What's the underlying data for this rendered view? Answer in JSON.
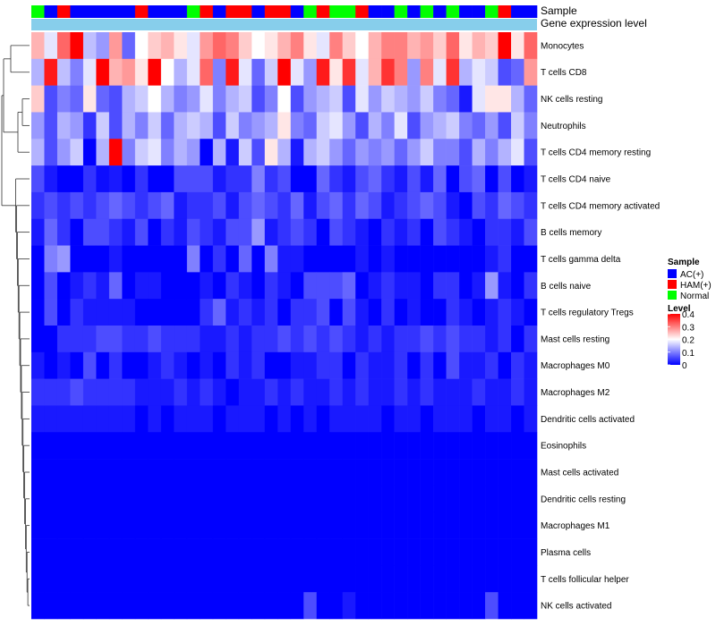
{
  "chart_data": {
    "type": "heatmap",
    "title": "",
    "annotation_tracks": [
      "Sample",
      "Gene expression level"
    ],
    "sample_groups": [
      "Normal",
      "AC(+)",
      "HAM(+)",
      "AC(+)",
      "AC(+)",
      "AC(+)",
      "AC(+)",
      "AC(+)",
      "HAM(+)",
      "AC(+)",
      "AC(+)",
      "AC(+)",
      "Normal",
      "HAM(+)",
      "AC(+)",
      "HAM(+)",
      "HAM(+)",
      "AC(+)",
      "HAM(+)",
      "HAM(+)",
      "AC(+)",
      "Normal",
      "HAM(+)",
      "Normal",
      "Normal",
      "HAM(+)",
      "AC(+)",
      "AC(+)",
      "Normal",
      "AC(+)",
      "Normal",
      "AC(+)",
      "Normal",
      "AC(+)",
      "AC(+)",
      "Normal",
      "HAM(+)",
      "AC(+)",
      "AC(+)"
    ],
    "rows": [
      "Monocytes",
      "T cells CD8",
      "NK cells resting",
      "Neutrophils",
      "T cells CD4 memory resting",
      "T cells CD4 naive",
      "T cells CD4 memory activated",
      "B cells memory",
      "T cells gamma delta",
      "B cells naive",
      "T cells regulatory  Tregs",
      "Mast cells resting",
      "Macrophages M0",
      "Macrophages M2",
      "Dendritic cells activated",
      "Eosinophils",
      "Mast cells activated",
      "Dendritic cells resting",
      "Macrophages M1",
      "Plasma cells",
      "T cells follicular helper",
      "NK cells activated"
    ],
    "values": [
      [
        0.26,
        0.18,
        0.32,
        0.4,
        0.15,
        0.12,
        0.28,
        0.08,
        0.2,
        0.24,
        0.26,
        0.22,
        0.18,
        0.28,
        0.32,
        0.3,
        0.24,
        0.2,
        0.22,
        0.26,
        0.3,
        0.22,
        0.18,
        0.3,
        0.24,
        0.2,
        0.26,
        0.3,
        0.3,
        0.26,
        0.28,
        0.24,
        0.32,
        0.22,
        0.26,
        0.24,
        0.4,
        0.22,
        0.32
      ],
      [
        0.14,
        0.38,
        0.15,
        0.1,
        0.18,
        0.4,
        0.26,
        0.28,
        0.22,
        0.4,
        0.2,
        0.14,
        0.18,
        0.32,
        0.1,
        0.38,
        0.18,
        0.08,
        0.16,
        0.4,
        0.18,
        0.12,
        0.38,
        0.22,
        0.36,
        0.18,
        0.26,
        0.36,
        0.3,
        0.12,
        0.3,
        0.18,
        0.36,
        0.14,
        0.18,
        0.16,
        0.06,
        0.08,
        0.28
      ],
      [
        0.24,
        0.06,
        0.1,
        0.08,
        0.22,
        0.08,
        0.06,
        0.14,
        0.16,
        0.2,
        0.14,
        0.1,
        0.12,
        0.18,
        0.1,
        0.14,
        0.16,
        0.06,
        0.1,
        0.2,
        0.06,
        0.12,
        0.14,
        0.16,
        0.06,
        0.18,
        0.12,
        0.16,
        0.14,
        0.12,
        0.16,
        0.1,
        0.08,
        0.02,
        0.18,
        0.22,
        0.22,
        0.14,
        0.08
      ],
      [
        0.12,
        0.06,
        0.14,
        0.12,
        0.04,
        0.16,
        0.06,
        0.14,
        0.1,
        0.16,
        0.08,
        0.14,
        0.16,
        0.14,
        0.06,
        0.16,
        0.1,
        0.12,
        0.14,
        0.22,
        0.1,
        0.08,
        0.16,
        0.18,
        0.12,
        0.06,
        0.14,
        0.1,
        0.18,
        0.06,
        0.12,
        0.14,
        0.16,
        0.1,
        0.08,
        0.12,
        0.06,
        0.16,
        0.1
      ],
      [
        0.14,
        0.06,
        0.12,
        0.16,
        0.0,
        0.14,
        0.4,
        0.1,
        0.16,
        0.18,
        0.1,
        0.14,
        0.12,
        0.0,
        0.14,
        0.02,
        0.16,
        0.06,
        0.22,
        0.14,
        0.02,
        0.14,
        0.16,
        0.12,
        0.08,
        0.12,
        0.1,
        0.12,
        0.08,
        0.12,
        0.16,
        0.1,
        0.1,
        0.06,
        0.14,
        0.1,
        0.14,
        0.18,
        0.06
      ],
      [
        0.06,
        0.02,
        0.0,
        0.0,
        0.04,
        0.01,
        0.02,
        0.0,
        0.04,
        0.0,
        0.0,
        0.06,
        0.06,
        0.06,
        0.02,
        0.04,
        0.04,
        0.1,
        0.04,
        0.06,
        0.0,
        0.0,
        0.08,
        0.04,
        0.02,
        0.06,
        0.08,
        0.04,
        0.02,
        0.06,
        0.02,
        0.08,
        0.0,
        0.06,
        0.08,
        0.0,
        0.06,
        0.0,
        0.02
      ],
      [
        0.04,
        0.06,
        0.04,
        0.06,
        0.04,
        0.06,
        0.08,
        0.06,
        0.04,
        0.06,
        0.08,
        0.02,
        0.04,
        0.04,
        0.06,
        0.02,
        0.06,
        0.08,
        0.06,
        0.04,
        0.08,
        0.02,
        0.06,
        0.08,
        0.04,
        0.08,
        0.06,
        0.02,
        0.04,
        0.06,
        0.08,
        0.06,
        0.02,
        0.0,
        0.06,
        0.04,
        0.08,
        0.06,
        0.04
      ],
      [
        0.02,
        0.08,
        0.04,
        0.0,
        0.06,
        0.06,
        0.04,
        0.02,
        0.06,
        0.0,
        0.04,
        0.02,
        0.06,
        0.04,
        0.02,
        0.06,
        0.06,
        0.12,
        0.02,
        0.04,
        0.06,
        0.04,
        0.0,
        0.06,
        0.04,
        0.02,
        0.0,
        0.04,
        0.02,
        0.04,
        0.0,
        0.06,
        0.04,
        0.02,
        0.0,
        0.04,
        0.04,
        0.02,
        0.06
      ],
      [
        0.0,
        0.1,
        0.12,
        0.0,
        0.0,
        0.0,
        0.02,
        0.0,
        0.0,
        0.0,
        0.0,
        0.0,
        0.1,
        0.0,
        0.04,
        0.0,
        0.08,
        0.0,
        0.1,
        0.02,
        0.02,
        0.0,
        0.0,
        0.0,
        0.0,
        0.02,
        0.0,
        0.02,
        0.0,
        0.0,
        0.0,
        0.0,
        0.0,
        0.0,
        0.0,
        0.02,
        0.04,
        0.0,
        0.0
      ],
      [
        0.0,
        0.06,
        0.0,
        0.02,
        0.04,
        0.02,
        0.08,
        0.0,
        0.02,
        0.02,
        0.0,
        0.0,
        0.0,
        0.02,
        0.0,
        0.04,
        0.02,
        0.0,
        0.04,
        0.02,
        0.0,
        0.06,
        0.06,
        0.06,
        0.08,
        0.0,
        0.02,
        0.04,
        0.02,
        0.02,
        0.0,
        0.04,
        0.04,
        0.0,
        0.02,
        0.12,
        0.02,
        0.0,
        0.04
      ],
      [
        0.0,
        0.06,
        0.0,
        0.04,
        0.02,
        0.02,
        0.02,
        0.02,
        0.0,
        0.0,
        0.0,
        0.0,
        0.0,
        0.04,
        0.08,
        0.02,
        0.04,
        0.02,
        0.04,
        0.0,
        0.04,
        0.04,
        0.06,
        0.0,
        0.06,
        0.02,
        0.0,
        0.04,
        0.0,
        0.02,
        0.0,
        0.0,
        0.04,
        0.02,
        0.0,
        0.02,
        0.04,
        0.02,
        0.0
      ],
      [
        0.0,
        0.0,
        0.04,
        0.04,
        0.04,
        0.06,
        0.06,
        0.04,
        0.04,
        0.06,
        0.04,
        0.04,
        0.04,
        0.02,
        0.02,
        0.04,
        0.02,
        0.04,
        0.04,
        0.06,
        0.04,
        0.06,
        0.04,
        0.06,
        0.04,
        0.02,
        0.04,
        0.02,
        0.04,
        0.04,
        0.06,
        0.04,
        0.06,
        0.04,
        0.04,
        0.02,
        0.04,
        0.0,
        0.04
      ],
      [
        0.02,
        0.0,
        0.02,
        0.0,
        0.06,
        0.0,
        0.04,
        0.0,
        0.0,
        0.02,
        0.04,
        0.02,
        0.0,
        0.02,
        0.0,
        0.04,
        0.02,
        0.04,
        0.0,
        0.0,
        0.02,
        0.02,
        0.04,
        0.04,
        0.0,
        0.04,
        0.02,
        0.02,
        0.04,
        0.0,
        0.04,
        0.0,
        0.06,
        0.02,
        0.02,
        0.04,
        0.0,
        0.04,
        0.02
      ],
      [
        0.04,
        0.04,
        0.04,
        0.06,
        0.04,
        0.04,
        0.04,
        0.04,
        0.02,
        0.02,
        0.02,
        0.04,
        0.02,
        0.04,
        0.02,
        0.0,
        0.02,
        0.02,
        0.04,
        0.02,
        0.04,
        0.02,
        0.02,
        0.04,
        0.02,
        0.04,
        0.02,
        0.02,
        0.04,
        0.02,
        0.04,
        0.02,
        0.02,
        0.02,
        0.04,
        0.02,
        0.02,
        0.04,
        0.02
      ],
      [
        0.02,
        0.02,
        0.02,
        0.02,
        0.02,
        0.02,
        0.02,
        0.02,
        0.0,
        0.02,
        0.0,
        0.02,
        0.02,
        0.02,
        0.0,
        0.02,
        0.02,
        0.02,
        0.0,
        0.02,
        0.0,
        0.02,
        0.0,
        0.02,
        0.02,
        0.02,
        0.02,
        0.0,
        0.02,
        0.02,
        0.0,
        0.02,
        0.02,
        0.02,
        0.0,
        0.02,
        0.02,
        0.0,
        0.02
      ],
      [
        0,
        0,
        0,
        0,
        0,
        0,
        0,
        0,
        0,
        0,
        0,
        0,
        0,
        0,
        0,
        0,
        0,
        0,
        0,
        0,
        0,
        0,
        0,
        0,
        0,
        0,
        0,
        0,
        0,
        0,
        0,
        0,
        0,
        0,
        0,
        0,
        0,
        0,
        0
      ],
      [
        0,
        0,
        0,
        0,
        0,
        0,
        0,
        0,
        0,
        0,
        0,
        0,
        0,
        0,
        0,
        0,
        0,
        0,
        0,
        0,
        0,
        0,
        0,
        0,
        0,
        0,
        0,
        0,
        0,
        0,
        0,
        0,
        0,
        0,
        0,
        0,
        0,
        0,
        0
      ],
      [
        0,
        0,
        0,
        0,
        0,
        0,
        0,
        0,
        0,
        0,
        0,
        0,
        0,
        0,
        0,
        0,
        0,
        0,
        0,
        0,
        0,
        0,
        0,
        0,
        0,
        0,
        0,
        0,
        0,
        0,
        0,
        0,
        0,
        0,
        0,
        0,
        0,
        0,
        0
      ],
      [
        0,
        0,
        0,
        0,
        0,
        0,
        0,
        0,
        0,
        0,
        0,
        0,
        0,
        0,
        0,
        0,
        0,
        0,
        0,
        0,
        0,
        0,
        0,
        0,
        0,
        0,
        0,
        0,
        0,
        0,
        0,
        0,
        0,
        0,
        0,
        0,
        0,
        0,
        0
      ],
      [
        0,
        0,
        0,
        0,
        0,
        0,
        0,
        0,
        0,
        0,
        0,
        0,
        0,
        0,
        0,
        0,
        0,
        0,
        0,
        0,
        0,
        0,
        0,
        0,
        0,
        0,
        0,
        0,
        0,
        0,
        0,
        0,
        0,
        0,
        0,
        0,
        0,
        0,
        0
      ],
      [
        0,
        0,
        0,
        0,
        0,
        0,
        0,
        0,
        0,
        0,
        0,
        0,
        0,
        0,
        0,
        0,
        0,
        0,
        0,
        0,
        0,
        0,
        0,
        0,
        0,
        0,
        0,
        0,
        0,
        0,
        0,
        0,
        0,
        0,
        0,
        0,
        0,
        0,
        0
      ],
      [
        0,
        0,
        0,
        0,
        0,
        0,
        0,
        0,
        0,
        0,
        0,
        0,
        0,
        0,
        0,
        0,
        0,
        0,
        0,
        0,
        0,
        0.06,
        0,
        0,
        0.02,
        0,
        0,
        0,
        0,
        0,
        0,
        0,
        0,
        0,
        0,
        0.06,
        0,
        0,
        0
      ]
    ],
    "scale": {
      "min": 0,
      "max": 0.4,
      "low_color": "#0000ff",
      "mid_color": "#ffffff",
      "high_color": "#ff0000",
      "mid_value": 0.2
    },
    "legend": {
      "sample_title": "Sample",
      "sample_entries": [
        {
          "label": "AC(+)",
          "color": "#0000ff"
        },
        {
          "label": "HAM(+)",
          "color": "#ff0000"
        },
        {
          "label": "Normal",
          "color": "#00ff00"
        }
      ],
      "level_title": "Level",
      "level_ticks": [
        "0.4",
        "0.3",
        "0.2",
        "0.1",
        "0"
      ],
      "level_tick_values": [
        0.4,
        0.3,
        0.2,
        0.1,
        0
      ],
      "placement": "right"
    },
    "expression_track_color": "#87ceeb",
    "row_dendrogram": true
  }
}
